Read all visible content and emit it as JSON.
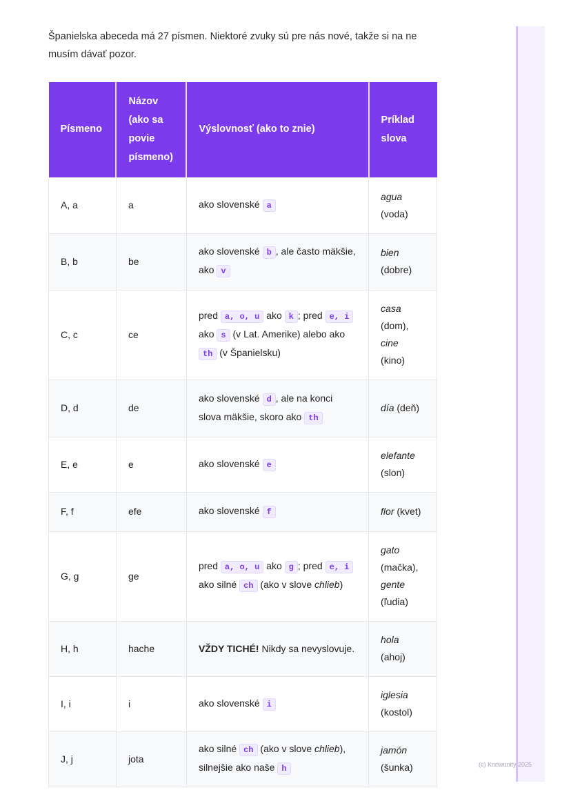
{
  "intro": "Španielska abeceda má 27 písmen. Niektoré zvuky sú pre nás nové, takže si na ne musím dávať pozor.",
  "headers": [
    "Písmeno",
    "Názov (ako sa povie písmeno)",
    "Výslovnosť (ako to znie)",
    "Príklad slova"
  ],
  "rows": [
    {
      "letter": "A, a",
      "name": "a",
      "pron": [
        {
          "t": "ako slovenské "
        },
        {
          "c": "a"
        }
      ],
      "ex": [
        {
          "i": "agua"
        },
        {
          "t": " (voda)"
        }
      ]
    },
    {
      "letter": "B, b",
      "name": "be",
      "pron": [
        {
          "t": "ako slovenské "
        },
        {
          "c": "b"
        },
        {
          "t": ", ale často mäkšie, ako "
        },
        {
          "c": "v"
        }
      ],
      "ex": [
        {
          "i": "bien"
        },
        {
          "t": " (dobre)"
        }
      ]
    },
    {
      "letter": "C, c",
      "name": "ce",
      "pron": [
        {
          "t": "pred "
        },
        {
          "c": "a, o, u"
        },
        {
          "t": " ako "
        },
        {
          "c": "k"
        },
        {
          "t": "; pred "
        },
        {
          "c": "e, i"
        },
        {
          "t": " ako "
        },
        {
          "c": "s"
        },
        {
          "t": " (v Lat. Amerike) alebo ako "
        },
        {
          "c": "th"
        },
        {
          "t": " (v Španielsku)"
        }
      ],
      "ex": [
        {
          "i": "casa"
        },
        {
          "t": " (dom), "
        },
        {
          "i": "cine"
        },
        {
          "t": " (kino)"
        }
      ]
    },
    {
      "letter": "D, d",
      "name": "de",
      "pron": [
        {
          "t": "ako slovenské "
        },
        {
          "c": "d"
        },
        {
          "t": ", ale na konci slova mäkšie, skoro ako "
        },
        {
          "c": "th"
        }
      ],
      "ex": [
        {
          "i": "día"
        },
        {
          "t": " (deň)"
        }
      ]
    },
    {
      "letter": "E, e",
      "name": "e",
      "pron": [
        {
          "t": "ako slovenské "
        },
        {
          "c": "e"
        }
      ],
      "ex": [
        {
          "i": "elefante"
        },
        {
          "t": " (slon)"
        }
      ]
    },
    {
      "letter": "F, f",
      "name": "efe",
      "pron": [
        {
          "t": "ako slovenské "
        },
        {
          "c": "f"
        }
      ],
      "ex": [
        {
          "i": "flor"
        },
        {
          "t": " (kvet)"
        }
      ]
    },
    {
      "letter": "G, g",
      "name": "ge",
      "pron": [
        {
          "t": "pred "
        },
        {
          "c": "a, o, u"
        },
        {
          "t": " ako "
        },
        {
          "c": "g"
        },
        {
          "t": "; pred "
        },
        {
          "c": "e, i"
        },
        {
          "t": " ako silné "
        },
        {
          "c": "ch"
        },
        {
          "t": " (ako v slove "
        },
        {
          "i": "chlieb"
        },
        {
          "t": ")"
        }
      ],
      "ex": [
        {
          "i": "gato"
        },
        {
          "t": " (mačka), "
        },
        {
          "i": "gente"
        },
        {
          "t": " (ľudia)"
        }
      ]
    },
    {
      "letter": "H, h",
      "name": "hache",
      "pron": [
        {
          "b": "VŽDY TICHÉ!"
        },
        {
          "t": " Nikdy sa nevyslovuje."
        }
      ],
      "ex": [
        {
          "i": "hola"
        },
        {
          "t": " (ahoj)"
        }
      ]
    },
    {
      "letter": "I, i",
      "name": "i",
      "pron": [
        {
          "t": "ako slovenské "
        },
        {
          "c": "i"
        }
      ],
      "ex": [
        {
          "i": "iglesia"
        },
        {
          "t": " (kostol)"
        }
      ]
    },
    {
      "letter": "J, j",
      "name": "jota",
      "pron": [
        {
          "t": "ako silné "
        },
        {
          "c": "ch"
        },
        {
          "t": " (ako v slove "
        },
        {
          "i": "chlieb"
        },
        {
          "t": "), silnejšie ako naše "
        },
        {
          "c": "h"
        }
      ],
      "ex": [
        {
          "i": "jamón"
        },
        {
          "t": " (šunka)"
        }
      ]
    }
  ],
  "footer": "(c) Knowunity 2025",
  "colors": {
    "accent": "#7c3aed",
    "code_bg": "#f1ecfd"
  }
}
